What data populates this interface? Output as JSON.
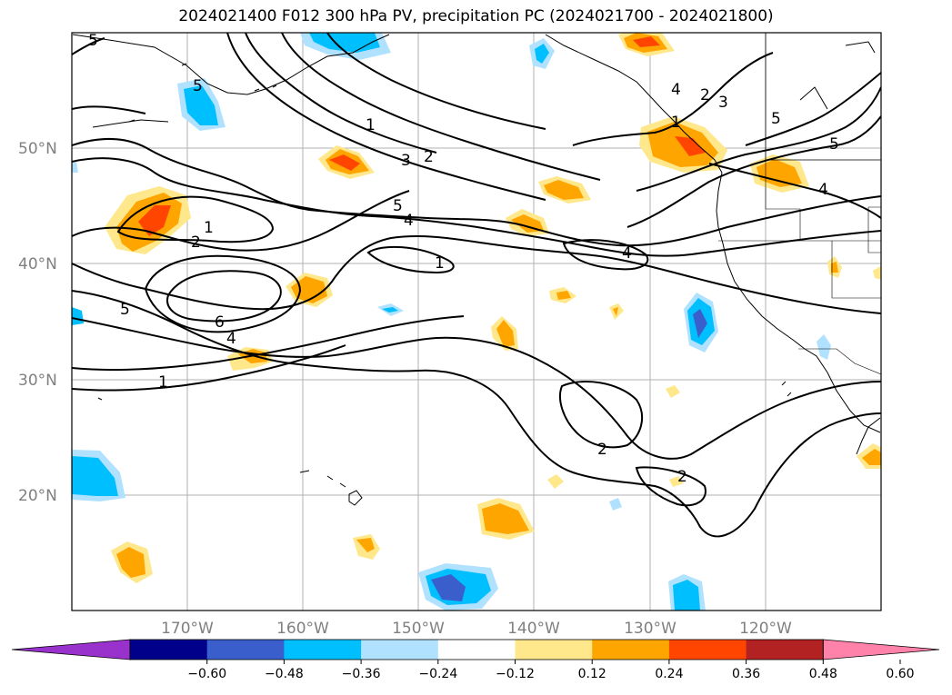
{
  "title": "2024021400 F012 300 hPa PV, precipitation PC (2024021700 - 2024021800)",
  "lat_labels": [
    "50°N",
    "40°N",
    "30°N",
    "20°N"
  ],
  "lon_labels": [
    "170°W",
    "160°W",
    "150°W",
    "140°W",
    "130°W",
    "120°W"
  ],
  "colorbar": {
    "ticks": [
      "−0.60",
      "−0.48",
      "−0.36",
      "−0.24",
      "−0.12",
      "0.12",
      "0.24",
      "0.36",
      "0.48",
      "0.60"
    ],
    "colors": [
      "#9932cc",
      "#00008b",
      "#3a5fcd",
      "#00bfff",
      "#b0e2ff",
      "#ffffff",
      "#ffe78c",
      "#ffa500",
      "#ff4500",
      "#b22222",
      "#ff82ab"
    ]
  },
  "contour_labels": [
    "5",
    "5",
    "1",
    "2",
    "3",
    "1",
    "2",
    "5",
    "4",
    "1",
    "2",
    "3",
    "5",
    "4",
    "5",
    "4",
    "1",
    "4",
    "6",
    "4",
    "5",
    "1",
    "2",
    "2"
  ]
}
